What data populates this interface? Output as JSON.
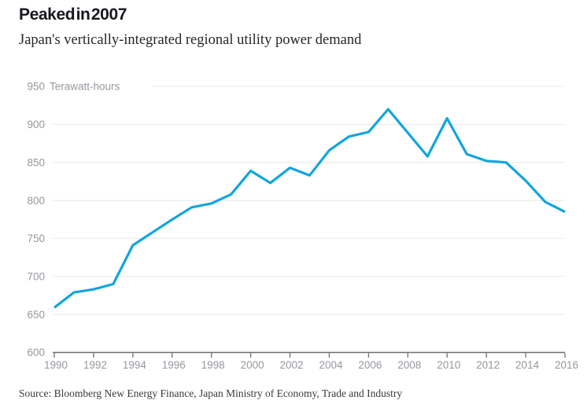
{
  "header": {
    "title": "Peaked in 2007",
    "subtitle": "Japan's vertically-integrated regional utility power demand"
  },
  "footer": {
    "source": "Source: Bloomberg New Energy Finance, Japan Ministry of Economy, Trade and Industry"
  },
  "colors": {
    "line": "#12A5DC",
    "grid": "#e8e8e8",
    "axis": "#6e6e73",
    "tick_label": "#97979f",
    "title": "#17171d",
    "background": "#ffffff"
  },
  "chart_data": {
    "type": "line",
    "title": "Peaked in 2007",
    "subtitle": "Japan's vertically-integrated regional utility power demand",
    "unit_label": "Terawatt-hours",
    "x": [
      1990,
      1991,
      1992,
      1993,
      1994,
      1995,
      1996,
      1997,
      1998,
      1999,
      2000,
      2001,
      2002,
      2003,
      2004,
      2005,
      2006,
      2007,
      2008,
      2009,
      2010,
      2011,
      2012,
      2013,
      2014,
      2015,
      2016
    ],
    "values": [
      659,
      679,
      683,
      690,
      741,
      758,
      775,
      791,
      796,
      808,
      839,
      823,
      843,
      833,
      866,
      884,
      890,
      920,
      889,
      858,
      908,
      861,
      852,
      850,
      826,
      798,
      785
    ],
    "series_name": "Japan regional utility power demand (TWh)",
    "ylim": [
      600,
      950
    ],
    "yticks": [
      600,
      650,
      700,
      750,
      800,
      850,
      900,
      950
    ],
    "xticks": [
      1990,
      1992,
      1994,
      1996,
      1998,
      2000,
      2002,
      2004,
      2006,
      2008,
      2010,
      2012,
      2014,
      2016
    ],
    "grid": "horizontal",
    "legend": "none",
    "peak": {
      "year": 2007,
      "value": 920
    }
  }
}
